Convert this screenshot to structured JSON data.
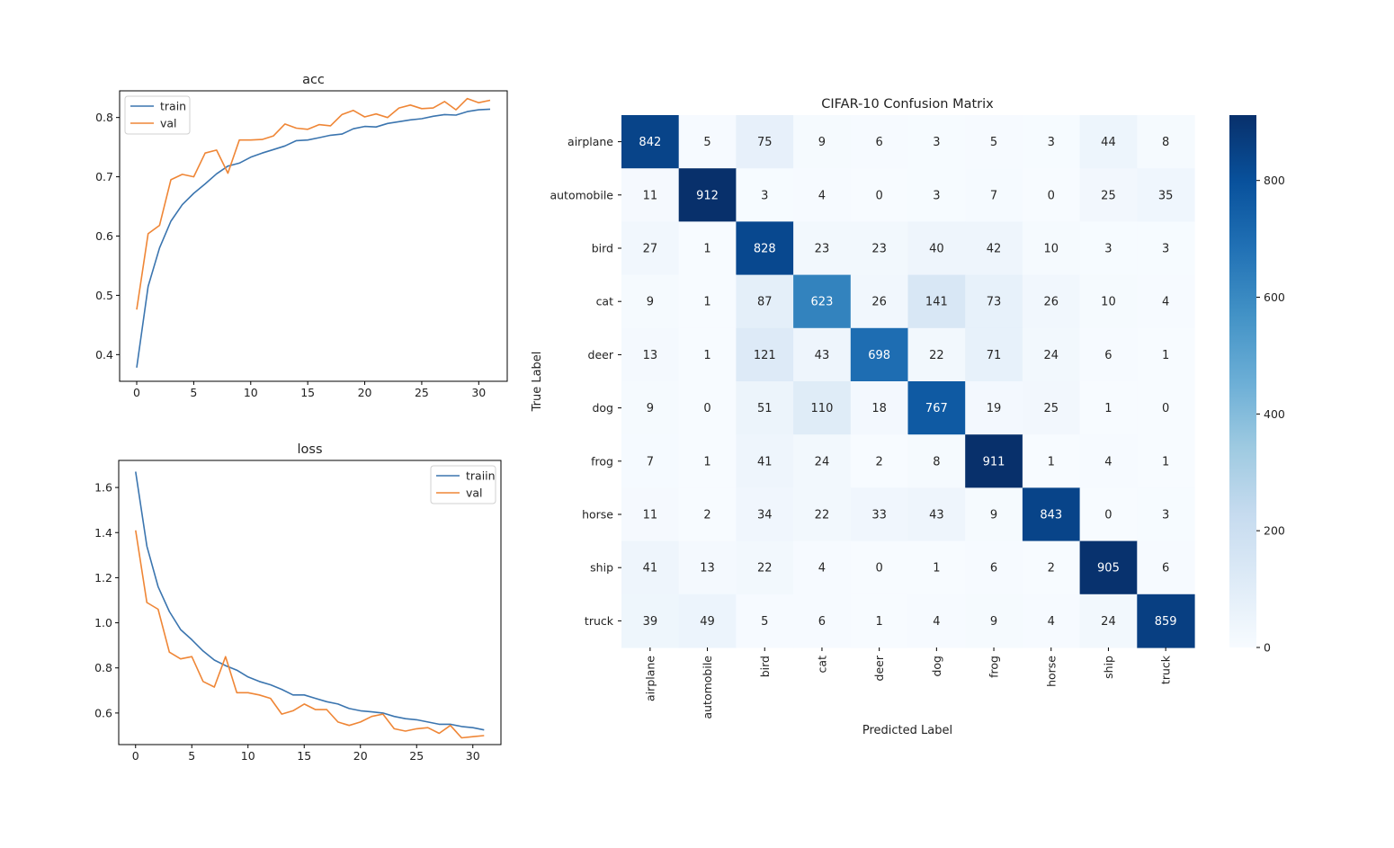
{
  "chart_data": [
    {
      "type": "line",
      "title": "acc",
      "xlabel": "",
      "ylabel": "",
      "xlim": [
        -1.5,
        32.5
      ],
      "ylim": [
        0.355,
        0.845
      ],
      "xticks": [
        0,
        5,
        10,
        15,
        20,
        25,
        30
      ],
      "xtick_labels": [
        "0",
        "5",
        "10",
        "15",
        "20",
        "25",
        "30"
      ],
      "yticks": [
        0.4,
        0.5,
        0.6,
        0.7,
        0.8
      ],
      "ytick_labels": [
        "0.4",
        "0.5",
        "0.6",
        "0.7",
        "0.8"
      ],
      "legend_position": "top-left",
      "x": [
        0,
        1,
        2,
        3,
        4,
        5,
        6,
        7,
        8,
        9,
        10,
        11,
        12,
        13,
        14,
        15,
        16,
        17,
        18,
        19,
        20,
        21,
        22,
        23,
        24,
        25,
        26,
        27,
        28,
        29,
        30,
        31
      ],
      "series": [
        {
          "name": "train",
          "color": "#3b75af",
          "values": [
            0.378,
            0.515,
            0.58,
            0.625,
            0.653,
            0.672,
            0.688,
            0.705,
            0.718,
            0.723,
            0.733,
            0.74,
            0.746,
            0.752,
            0.761,
            0.762,
            0.766,
            0.77,
            0.772,
            0.781,
            0.785,
            0.784,
            0.79,
            0.793,
            0.796,
            0.798,
            0.802,
            0.805,
            0.804,
            0.81,
            0.813,
            0.814
          ]
        },
        {
          "name": "val",
          "color": "#ef8636",
          "values": [
            0.476,
            0.604,
            0.618,
            0.695,
            0.704,
            0.7,
            0.74,
            0.745,
            0.706,
            0.762,
            0.762,
            0.763,
            0.769,
            0.789,
            0.782,
            0.78,
            0.788,
            0.786,
            0.805,
            0.812,
            0.801,
            0.806,
            0.8,
            0.816,
            0.821,
            0.815,
            0.816,
            0.827,
            0.813,
            0.832,
            0.825,
            0.829
          ]
        }
      ]
    },
    {
      "type": "line",
      "title": "loss",
      "xlabel": "",
      "ylabel": "",
      "xlim": [
        -1.5,
        32.5
      ],
      "ylim": [
        0.46,
        1.72
      ],
      "xticks": [
        0,
        5,
        10,
        15,
        20,
        25,
        30
      ],
      "xtick_labels": [
        "0",
        "5",
        "10",
        "15",
        "20",
        "25",
        "30"
      ],
      "yticks": [
        0.6,
        0.8,
        1.0,
        1.2,
        1.4,
        1.6
      ],
      "ytick_labels": [
        "0.6",
        "0.8",
        "1.0",
        "1.2",
        "1.4",
        "1.6"
      ],
      "legend_position": "top-right",
      "x": [
        0,
        1,
        2,
        3,
        4,
        5,
        6,
        7,
        8,
        9,
        10,
        11,
        12,
        13,
        14,
        15,
        16,
        17,
        18,
        19,
        20,
        21,
        22,
        23,
        24,
        25,
        26,
        27,
        28,
        29,
        30,
        31
      ],
      "series": [
        {
          "name": "traiin",
          "color": "#3b75af",
          "values": [
            1.67,
            1.34,
            1.16,
            1.05,
            0.97,
            0.925,
            0.875,
            0.835,
            0.81,
            0.79,
            0.76,
            0.74,
            0.725,
            0.705,
            0.68,
            0.68,
            0.665,
            0.65,
            0.64,
            0.62,
            0.61,
            0.605,
            0.6,
            0.585,
            0.575,
            0.57,
            0.56,
            0.55,
            0.55,
            0.54,
            0.535,
            0.525
          ]
        },
        {
          "name": "val",
          "color": "#ef8636",
          "values": [
            1.41,
            1.09,
            1.06,
            0.87,
            0.84,
            0.85,
            0.74,
            0.715,
            0.85,
            0.69,
            0.69,
            0.68,
            0.665,
            0.595,
            0.61,
            0.64,
            0.615,
            0.615,
            0.56,
            0.545,
            0.56,
            0.585,
            0.595,
            0.53,
            0.52,
            0.53,
            0.535,
            0.51,
            0.545,
            0.49,
            0.495,
            0.5
          ]
        }
      ]
    },
    {
      "type": "heatmap",
      "title": "CIFAR-10 Confusion Matrix",
      "xlabel": "Predicted Label",
      "ylabel": "True Label",
      "categories": [
        "airplane",
        "automobile",
        "bird",
        "cat",
        "deer",
        "dog",
        "frog",
        "horse",
        "ship",
        "truck"
      ],
      "values": [
        [
          842,
          5,
          75,
          9,
          6,
          3,
          5,
          3,
          44,
          8
        ],
        [
          11,
          912,
          3,
          4,
          0,
          3,
          7,
          0,
          25,
          35
        ],
        [
          27,
          1,
          828,
          23,
          23,
          40,
          42,
          10,
          3,
          3
        ],
        [
          9,
          1,
          87,
          623,
          26,
          141,
          73,
          26,
          10,
          4
        ],
        [
          13,
          1,
          121,
          43,
          698,
          22,
          71,
          24,
          6,
          1
        ],
        [
          9,
          0,
          51,
          110,
          18,
          767,
          19,
          25,
          1,
          0
        ],
        [
          7,
          1,
          41,
          24,
          2,
          8,
          911,
          1,
          4,
          1
        ],
        [
          11,
          2,
          34,
          22,
          33,
          43,
          9,
          843,
          0,
          3
        ],
        [
          41,
          13,
          22,
          4,
          0,
          1,
          6,
          2,
          905,
          6
        ],
        [
          39,
          49,
          5,
          6,
          1,
          4,
          9,
          4,
          24,
          859
        ]
      ],
      "colormap": "Blues",
      "vmin": 0,
      "vmax": 912,
      "colorbar_ticks": [
        0,
        200,
        400,
        600,
        800
      ],
      "colorbar_tick_labels": [
        "0",
        "200",
        "400",
        "600",
        "800"
      ]
    }
  ]
}
